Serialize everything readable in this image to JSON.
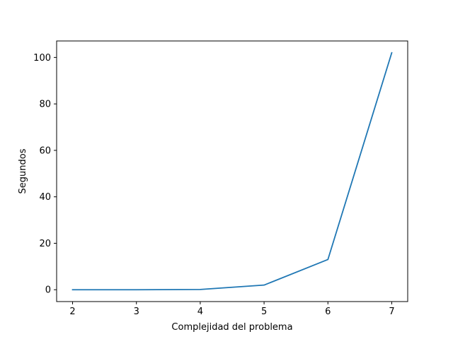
{
  "chart_data": {
    "type": "line",
    "title": "",
    "xlabel": "Complejidad del problema",
    "ylabel": "Segundos",
    "x": [
      2,
      3,
      4,
      5,
      6,
      7
    ],
    "series": [
      {
        "values": [
          0.0,
          0.0,
          0.1,
          2.0,
          13.0,
          102.0
        ]
      }
    ],
    "xticks": [
      2,
      3,
      4,
      5,
      6,
      7
    ],
    "yticks": [
      0,
      20,
      40,
      60,
      80,
      100
    ],
    "xlim": [
      1.75,
      7.25
    ],
    "ylim": [
      -5.1,
      107.1
    ],
    "grid": false,
    "colors": {
      "line": "#1f77b4",
      "axes": "#000000"
    }
  }
}
